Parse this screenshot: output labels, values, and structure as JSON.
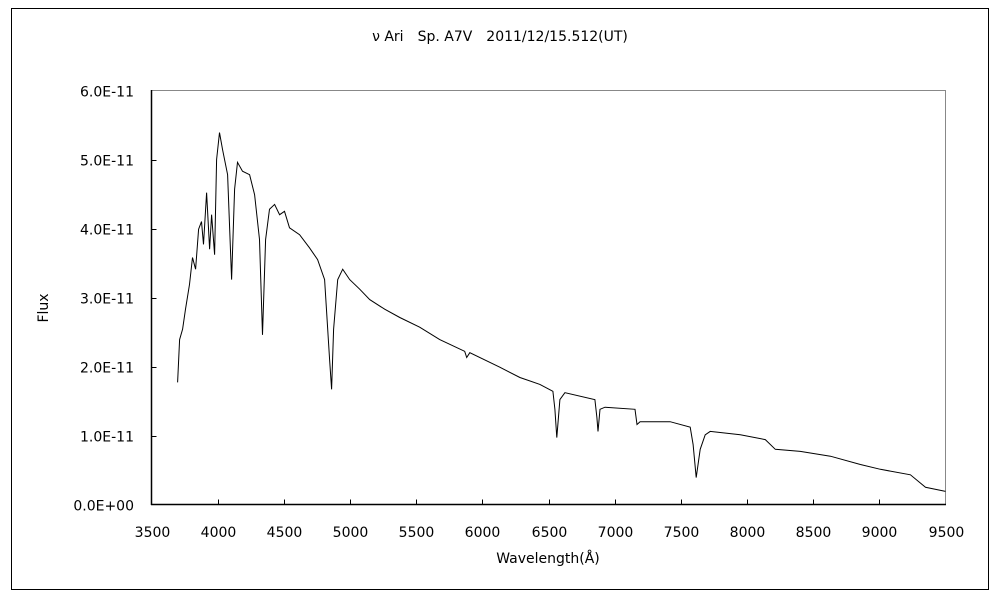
{
  "chart_data": {
    "type": "line",
    "title": "ν Ari　Sp. A7V　2011/12/15.512(UT)",
    "xlabel": "Wavelength(Å)",
    "ylabel": "Flux",
    "xlim": [
      3500,
      9500
    ],
    "ylim": [
      0,
      6e-11
    ],
    "x_ticks": [
      3500,
      4000,
      4500,
      5000,
      5500,
      6000,
      6500,
      7000,
      7500,
      8000,
      8500,
      9000,
      9500
    ],
    "x_tick_labels": [
      "3500",
      "4000",
      "4500",
      "5000",
      "5500",
      "6000",
      "6500",
      "7000",
      "7500",
      "8000",
      "8500",
      "9000",
      "9500"
    ],
    "y_ticks": [
      0,
      1e-11,
      2e-11,
      3e-11,
      4e-11,
      5e-11,
      6e-11
    ],
    "y_tick_labels": [
      "0.0E+00",
      "1.0E-11",
      "2.0E-11",
      "3.0E-11",
      "4.0E-11",
      "5.0E-11",
      "6.0E-11"
    ],
    "grid": false,
    "legend": "none",
    "y_unit_scale": 1e-11,
    "series": [
      {
        "name": "Flux",
        "color": "#000000",
        "x": [
          3697,
          3712,
          3735,
          3757,
          3787,
          3810,
          3833,
          3856,
          3878,
          3893,
          3916,
          3939,
          3954,
          3977,
          3992,
          4014,
          4037,
          4075,
          4105,
          4128,
          4150,
          4188,
          4241,
          4279,
          4316,
          4339,
          4362,
          4392,
          4430,
          4468,
          4505,
          4543,
          4619,
          4694,
          4755,
          4808,
          4846,
          4861,
          4876,
          4907,
          4945,
          4998,
          5073,
          5149,
          5262,
          5376,
          5527,
          5678,
          5867,
          5882,
          5905,
          6132,
          6284,
          6435,
          6533,
          6548,
          6563,
          6586,
          6624,
          6851,
          6866,
          6874,
          6889,
          6927,
          7154,
          7169,
          7192,
          7268,
          7419,
          7571,
          7593,
          7616,
          7646,
          7684,
          7722,
          7949,
          8138,
          8214,
          8403,
          8630,
          8857,
          9008,
          9235,
          9349,
          9500
        ],
        "y": [
          1.77,
          2.39,
          2.54,
          2.83,
          3.19,
          3.58,
          3.41,
          3.99,
          4.1,
          3.77,
          4.52,
          3.7,
          4.2,
          3.62,
          5.0,
          5.39,
          5.14,
          4.78,
          3.26,
          4.57,
          4.96,
          4.83,
          4.78,
          4.49,
          3.84,
          2.46,
          3.84,
          4.28,
          4.35,
          4.2,
          4.25,
          4.01,
          3.91,
          3.72,
          3.55,
          3.26,
          2.1,
          1.67,
          2.54,
          3.26,
          3.41,
          3.26,
          3.12,
          2.97,
          2.83,
          2.71,
          2.57,
          2.39,
          2.22,
          2.13,
          2.2,
          1.99,
          1.84,
          1.74,
          1.64,
          1.38,
          0.97,
          1.52,
          1.62,
          1.52,
          1.26,
          1.06,
          1.38,
          1.41,
          1.38,
          1.16,
          1.2,
          1.2,
          1.2,
          1.12,
          0.87,
          0.39,
          0.8,
          1.01,
          1.06,
          1.01,
          0.94,
          0.8,
          0.77,
          0.7,
          0.58,
          0.51,
          0.43,
          0.25,
          0.19
        ]
      }
    ]
  }
}
